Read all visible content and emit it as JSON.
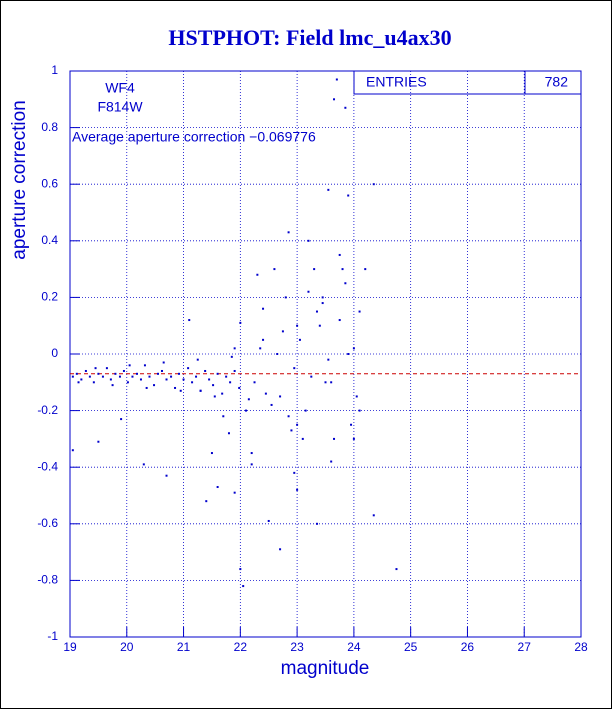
{
  "chart_data": {
    "type": "scatter",
    "title": "HSTPHOT: Field lmc_u4ax30",
    "x_label": "magnitude",
    "y_label": "aperture correction",
    "annotations": [
      "WF4",
      "F814W",
      "Average aperture correction −0.069776"
    ],
    "stats": {
      "label": "ENTRIES",
      "value": 782
    },
    "reference_y": -0.069776,
    "reference_color": "#cc0000",
    "color": "#0000cc",
    "grid": true,
    "xlim": [
      19,
      28
    ],
    "xticks": [
      19,
      20,
      21,
      22,
      23,
      24,
      25,
      26,
      27,
      28
    ],
    "ylim": [
      -1,
      1
    ],
    "yticks": [
      -1,
      -0.8,
      -0.6,
      -0.4,
      -0.2,
      0,
      0.2,
      0.4,
      0.6,
      0.8,
      1
    ],
    "x": [
      19.05,
      19.12,
      19.2,
      19.28,
      19.35,
      19.42,
      19.5,
      19.58,
      19.65,
      19.72,
      19.8,
      19.88,
      19.95,
      20.02,
      20.1,
      20.18,
      20.25,
      20.32,
      20.4,
      20.48,
      20.55,
      20.62,
      20.7,
      20.78,
      20.85,
      20.92,
      21.0,
      21.08,
      21.15,
      21.22,
      21.3,
      21.38,
      21.45,
      21.52,
      21.6,
      21.68,
      21.75,
      21.82,
      21.9,
      21.98,
      19.15,
      19.45,
      19.75,
      20.05,
      20.35,
      20.65,
      20.95,
      21.25,
      21.55,
      21.85,
      19.05,
      19.5,
      19.9,
      20.3,
      20.7,
      21.1,
      21.4,
      21.6,
      21.9,
      22.0,
      22.2,
      22.4,
      22.7,
      22.85,
      23.0,
      23.2,
      23.4,
      23.55,
      23.6,
      23.65,
      23.7,
      23.8,
      23.85,
      23.9,
      24.0,
      24.2,
      24.35,
      24.35,
      24.75,
      22.0,
      22.05,
      22.5,
      23.35,
      23.1,
      22.9,
      22.6,
      22.3,
      21.8,
      21.5,
      23.3,
      23.45,
      23.9,
      24.1,
      22.1,
      22.7,
      23.0,
      23.5,
      24.0,
      21.9,
      22.4,
      23.75,
      23.2,
      22.95,
      22.2,
      21.7,
      23.6,
      24.1,
      22.8,
      23.0,
      21.3,
      22.15,
      22.35,
      22.55,
      22.75,
      22.95,
      23.15,
      23.35,
      23.55,
      23.75,
      23.95,
      22.25,
      22.45,
      22.65,
      22.85,
      23.05,
      23.25,
      23.45,
      23.65,
      23.85,
      24.05
    ],
    "values": [
      -0.08,
      -0.07,
      -0.09,
      -0.06,
      -0.08,
      -0.1,
      -0.07,
      -0.08,
      -0.05,
      -0.09,
      -0.07,
      -0.08,
      -0.06,
      -0.1,
      -0.08,
      -0.07,
      -0.09,
      -0.04,
      -0.08,
      -0.11,
      -0.07,
      -0.06,
      -0.09,
      -0.08,
      -0.12,
      -0.07,
      -0.09,
      -0.05,
      -0.1,
      -0.08,
      -0.13,
      -0.06,
      -0.09,
      -0.11,
      -0.07,
      -0.14,
      -0.08,
      -0.1,
      -0.06,
      -0.12,
      -0.1,
      -0.05,
      -0.11,
      -0.04,
      -0.12,
      -0.03,
      -0.13,
      -0.02,
      -0.15,
      -0.01,
      -0.34,
      -0.31,
      -0.23,
      -0.39,
      -0.43,
      0.12,
      -0.52,
      -0.47,
      -0.49,
      0.11,
      -0.39,
      0.16,
      -0.69,
      0.43,
      -0.48,
      0.22,
      0.1,
      0.58,
      -0.1,
      0.9,
      0.97,
      0.3,
      0.87,
      0.56,
      0.02,
      0.3,
      0.6,
      -0.57,
      -0.76,
      -0.76,
      -0.82,
      -0.59,
      -0.6,
      -0.3,
      -0.27,
      0.3,
      0.28,
      -0.28,
      -0.35,
      0.3,
      0.2,
      0.0,
      -0.2,
      -0.2,
      -0.15,
      -0.25,
      -0.1,
      -0.3,
      0.02,
      0.05,
      0.35,
      0.4,
      -0.42,
      -0.35,
      -0.22,
      -0.38,
      0.15,
      0.2,
      0.1,
      -0.13,
      -0.16,
      0.02,
      -0.18,
      0.08,
      -0.05,
      -0.2,
      0.15,
      -0.02,
      0.12,
      -0.25,
      -0.1,
      -0.14,
      0.0,
      -0.22,
      0.05,
      -0.08,
      0.18,
      -0.3,
      0.25,
      -0.15
    ]
  }
}
